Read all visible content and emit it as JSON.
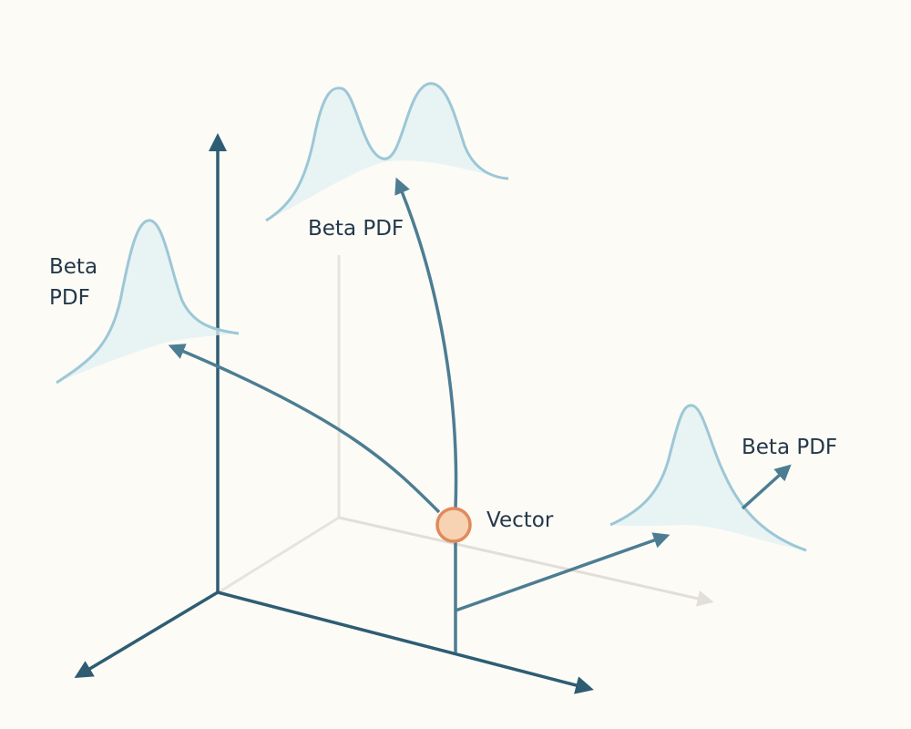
{
  "labels": {
    "top_pdf": "Beta PDF",
    "left_pdf_line1": "Beta",
    "left_pdf_line2": "PDF",
    "right_pdf": "Beta PDF",
    "vector": "Vector"
  },
  "colors": {
    "background": "#fcfbf6",
    "axis": "#2e5d73",
    "faint_axis": "#e4e2da",
    "curve_stroke": "#9cc7d6",
    "curve_fill": "#e2f0f3",
    "vector_fill": "#f7d3b3",
    "vector_stroke": "#e08a5c",
    "label": "#24384a"
  }
}
